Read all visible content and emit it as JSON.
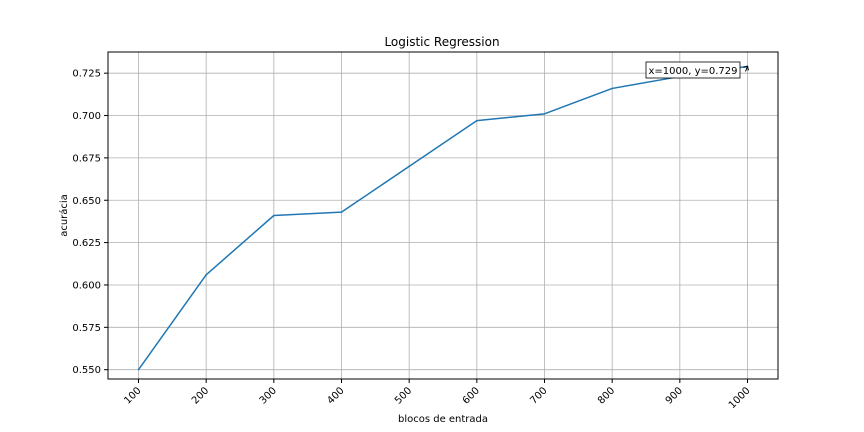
{
  "chart_data": {
    "type": "line",
    "title": "Logistic Regression",
    "xlabel": "blocos de entrada",
    "ylabel": "acurácia",
    "x": [
      100,
      200,
      300,
      400,
      500,
      600,
      700,
      800,
      900,
      1000
    ],
    "series": [
      {
        "values": [
          0.55,
          0.606,
          0.641,
          0.643,
          0.67,
          0.697,
          0.701,
          0.716,
          0.723,
          0.729
        ],
        "color": "#1f77b4"
      }
    ],
    "xticks": [
      "100",
      "200",
      "300",
      "400",
      "500",
      "600",
      "700",
      "800",
      "900",
      "1000"
    ],
    "yticks": [
      "0.550",
      "0.575",
      "0.600",
      "0.625",
      "0.650",
      "0.675",
      "0.700",
      "0.725"
    ],
    "xlim": [
      100,
      1000
    ],
    "ylim": [
      0.5445,
      0.7375
    ],
    "grid": true,
    "annotation": {
      "text": "x=1000, y=0.729",
      "x": 1000,
      "y": 0.729
    }
  }
}
